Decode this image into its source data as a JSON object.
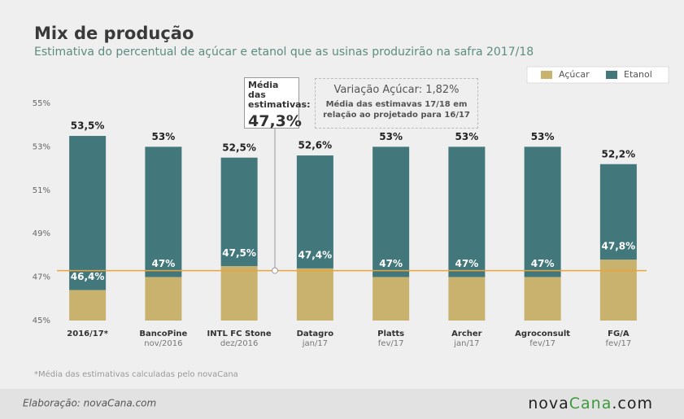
{
  "chart_data": {
    "type": "bar",
    "title": "Mix de produção",
    "subtitle": "Estimativa do percentual de açúcar e etanol que as usinas produzirão na safra 2017/18",
    "categories": [
      "2016/17*",
      "BancoPine",
      "INTL FC Stone",
      "Datagro",
      "Platts",
      "Archer",
      "Agroconsult",
      "FG/A"
    ],
    "category_dates": [
      null,
      "nov/2016",
      "dez/2016",
      "jan/17",
      "fev/17",
      "jan/17",
      "fev/17",
      "fev/17"
    ],
    "series": [
      {
        "name": "Açúcar",
        "color": "#c8b26e",
        "values": [
          46.4,
          47,
          47.5,
          47.4,
          47,
          47,
          47,
          47.8
        ],
        "value_labels": [
          "46,4%",
          "47%",
          "47,5%",
          "47,4%",
          "47%",
          "47%",
          "47%",
          "47,8%"
        ]
      },
      {
        "name": "Etanol",
        "color": "#42777b",
        "values": [
          53.5,
          53,
          52.5,
          52.6,
          53,
          53,
          53,
          52.2
        ],
        "value_labels": [
          "53,5%",
          "53%",
          "52,5%",
          "52,6%",
          "53%",
          "53%",
          "53%",
          "52,2%"
        ]
      }
    ],
    "ylim": [
      45,
      55
    ],
    "yticks": [
      {
        "value": 55,
        "label": "55%"
      },
      {
        "value": 53,
        "label": "53%"
      },
      {
        "value": 51,
        "label": "51%"
      },
      {
        "value": 49,
        "label": "49%"
      },
      {
        "value": 47,
        "label": "47%"
      },
      {
        "value": 45,
        "label": "45%"
      }
    ],
    "average": {
      "title": "Média das estimativas:",
      "value": 47.3,
      "label": "47,3%",
      "color": "#e8a33c"
    },
    "note": {
      "title": "Variação Açúcar: 1,82%",
      "text": "Média das estimavas 17/18 em relação ao projetado para 16/17"
    },
    "footnote": "*Média das estimativas calculadas pelo novaCana",
    "credit": "Elaboração: novaCana.com",
    "logo": [
      "nova",
      "Cana",
      ".com"
    ]
  }
}
